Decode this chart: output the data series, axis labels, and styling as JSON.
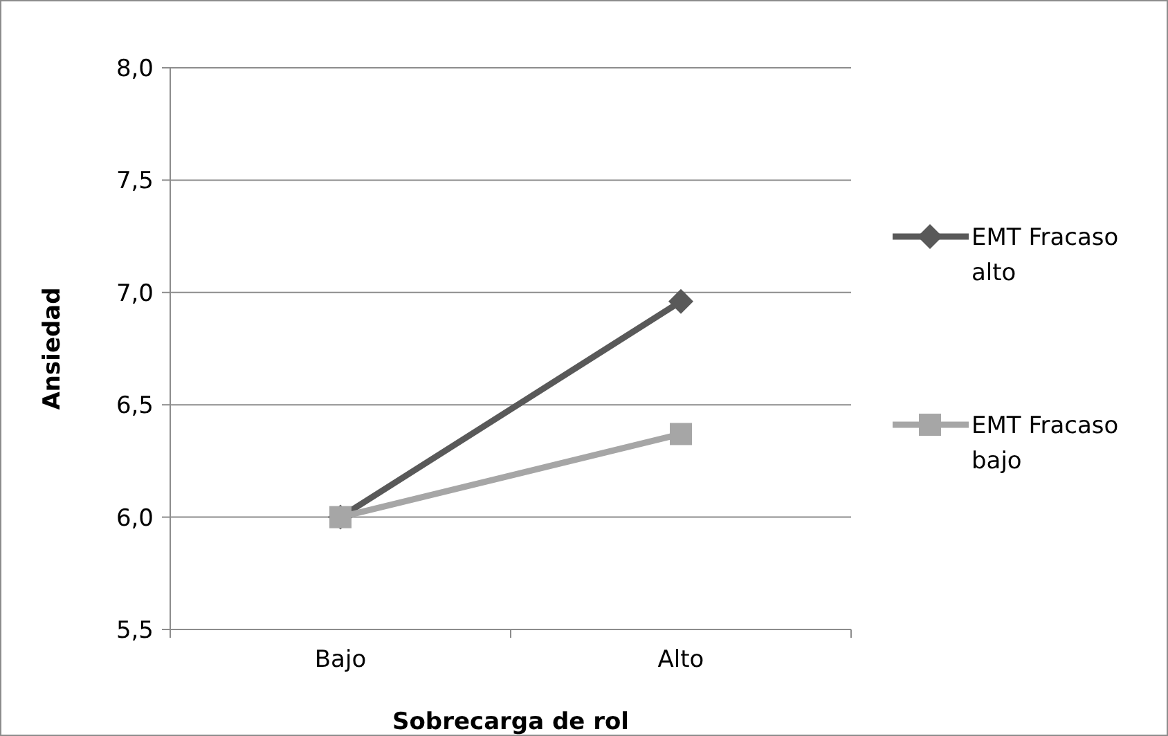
{
  "chart_data": {
    "type": "line",
    "xlabel": "Sobrecarga de rol",
    "ylabel": "Ansiedad",
    "categories": [
      "Bajo",
      "Alto"
    ],
    "series": [
      {
        "name": "EMT Fracaso alto",
        "color": "#595959",
        "marker": "diamond",
        "values": [
          6.0,
          6.96
        ]
      },
      {
        "name": "EMT Fracaso bajo",
        "color": "#a6a6a6",
        "marker": "square",
        "values": [
          6.0,
          6.37
        ]
      }
    ],
    "ylim": [
      5.5,
      8.0
    ],
    "yticks": [
      {
        "value": 5.5,
        "label": "5,5"
      },
      {
        "value": 6.0,
        "label": "6,0"
      },
      {
        "value": 6.5,
        "label": "6,5"
      },
      {
        "value": 7.0,
        "label": "7,0"
      },
      {
        "value": 7.5,
        "label": "7,5"
      },
      {
        "value": 8.0,
        "label": "8,0"
      }
    ],
    "grid": "y",
    "legend": "right",
    "line_style": "solid"
  }
}
